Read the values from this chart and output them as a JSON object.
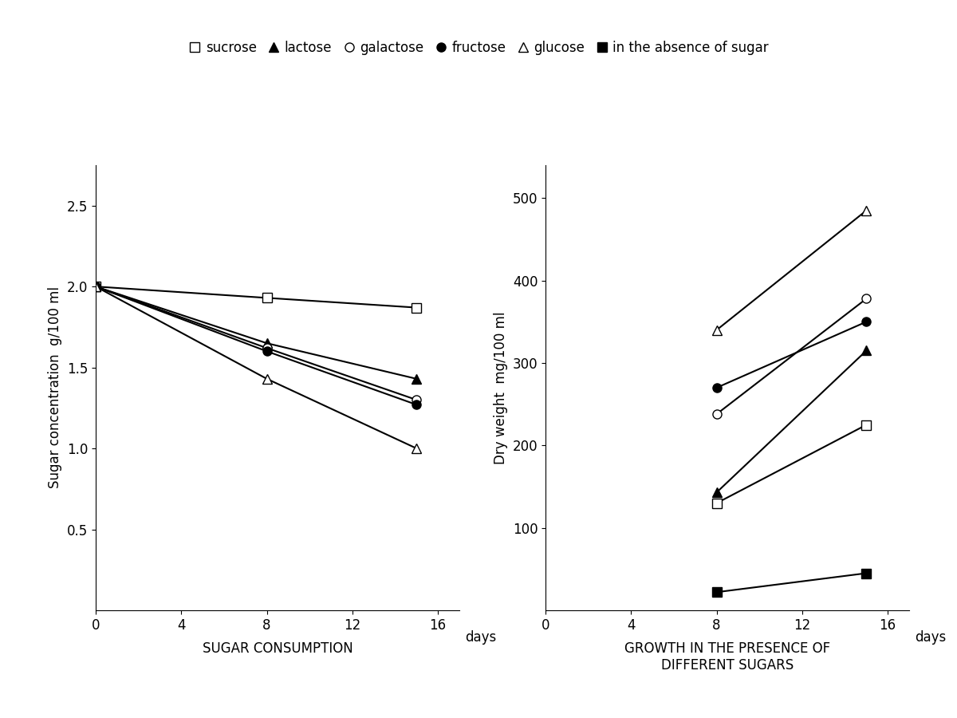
{
  "left_chart": {
    "xlabel": "SUGAR CONSUMPTION",
    "ylabel": "Sugar concentration  g/100 ml",
    "xlim": [
      0,
      17
    ],
    "ylim": [
      0,
      2.75
    ],
    "xticks": [
      0,
      4,
      8,
      12,
      16
    ],
    "yticks": [
      0.5,
      1.0,
      1.5,
      2.0,
      2.5
    ],
    "series": {
      "sucrose": {
        "x": [
          0,
          8,
          15
        ],
        "y": [
          2.0,
          1.93,
          1.87
        ],
        "marker": "s",
        "filled": false
      },
      "lactose": {
        "x": [
          0,
          8,
          15
        ],
        "y": [
          2.0,
          1.65,
          1.43
        ],
        "marker": "^",
        "filled": true
      },
      "galactose": {
        "x": [
          0,
          8,
          15
        ],
        "y": [
          2.0,
          1.62,
          1.3
        ],
        "marker": "o",
        "filled": false
      },
      "fructose": {
        "x": [
          0,
          8,
          15
        ],
        "y": [
          2.0,
          1.6,
          1.27
        ],
        "marker": "o",
        "filled": true
      },
      "glucose": {
        "x": [
          0,
          8,
          15
        ],
        "y": [
          2.0,
          1.43,
          1.0
        ],
        "marker": "^",
        "filled": false
      }
    }
  },
  "right_chart": {
    "xlabel_line1": "GROWTH IN THE PRESENCE OF",
    "xlabel_line2": "DIFFERENT SUGARS",
    "ylabel": "Dry weight  mg/100 ml",
    "xlim": [
      0,
      17
    ],
    "ylim": [
      0,
      540
    ],
    "xticks": [
      0,
      4,
      8,
      12,
      16
    ],
    "yticks": [
      100,
      200,
      300,
      400,
      500
    ],
    "series": {
      "sucrose": {
        "x": [
          8,
          15
        ],
        "y": [
          130,
          225
        ],
        "marker": "s",
        "filled": false
      },
      "lactose": {
        "x": [
          8,
          15
        ],
        "y": [
          143,
          315
        ],
        "marker": "^",
        "filled": true
      },
      "galactose": {
        "x": [
          8,
          15
        ],
        "y": [
          238,
          378
        ],
        "marker": "o",
        "filled": false
      },
      "fructose": {
        "x": [
          8,
          15
        ],
        "y": [
          270,
          350
        ],
        "marker": "o",
        "filled": true
      },
      "glucose": {
        "x": [
          8,
          15
        ],
        "y": [
          340,
          485
        ],
        "marker": "^",
        "filled": false
      },
      "absence_sugar": {
        "x": [
          8,
          15
        ],
        "y": [
          22,
          45
        ],
        "marker": "s",
        "filled": true
      }
    }
  },
  "legend": {
    "items": [
      {
        "label": "sucrose",
        "marker": "s",
        "filled": false
      },
      {
        "label": "lactose",
        "marker": "^",
        "filled": true
      },
      {
        "label": "galactose",
        "marker": "o",
        "filled": false
      },
      {
        "label": "fructose",
        "marker": "o",
        "filled": true
      },
      {
        "label": "glucose",
        "marker": "^",
        "filled": false
      },
      {
        "label": "in the absence of sugar",
        "marker": "s",
        "filled": true
      }
    ]
  },
  "color": "black",
  "markersize": 8,
  "linewidth": 1.5,
  "fontsize_label": 12,
  "fontsize_tick": 12,
  "fontsize_legend": 12,
  "days_label": "days",
  "days_label_right": "days"
}
